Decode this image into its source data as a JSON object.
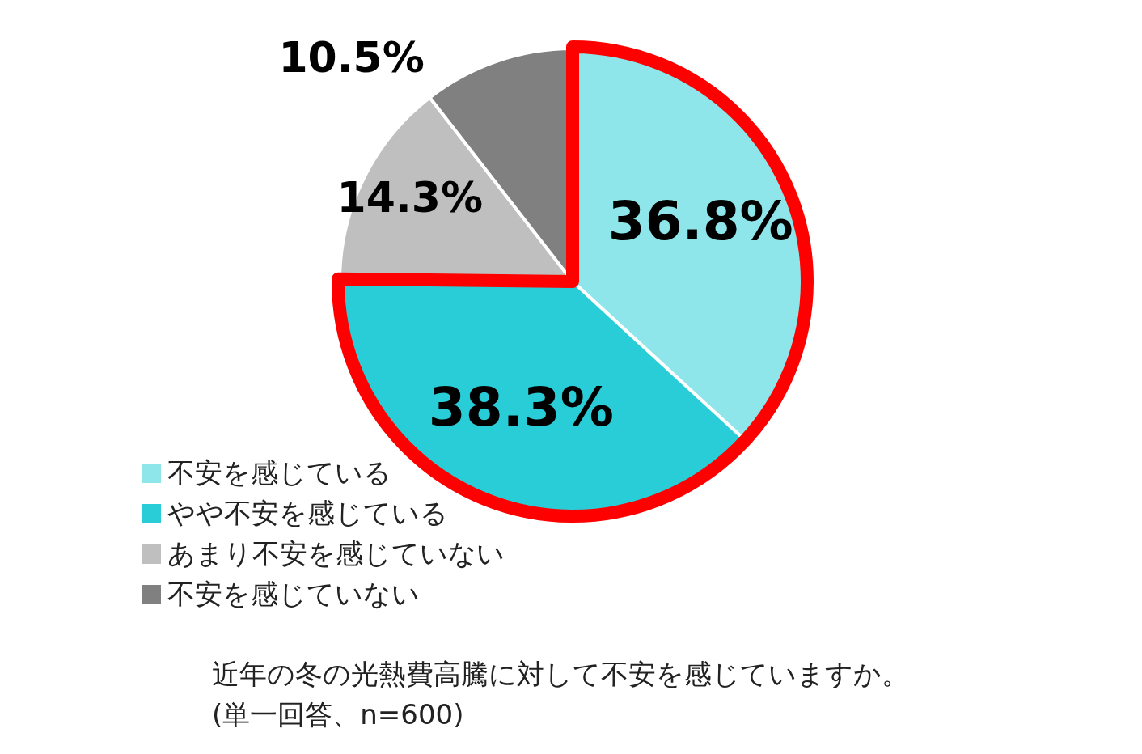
{
  "chart_data": {
    "type": "pie",
    "title": "近年の冬の光熱費高騰に対して不安を感じていますか。",
    "subtitle": "(単一回答、n=600)",
    "categories": [
      "不安を感じている",
      "やや不安を感じている",
      "あまり不安を感じていない",
      "不安を感じていない"
    ],
    "values": [
      36.8,
      38.3,
      14.3,
      10.5
    ],
    "colors": [
      "#8ee6ea",
      "#29cdd7",
      "#bfbfbf",
      "#808080"
    ],
    "value_labels": [
      "36.8%",
      "38.3%",
      "14.3%",
      "10.5%"
    ],
    "legend": "bottom left"
  }
}
